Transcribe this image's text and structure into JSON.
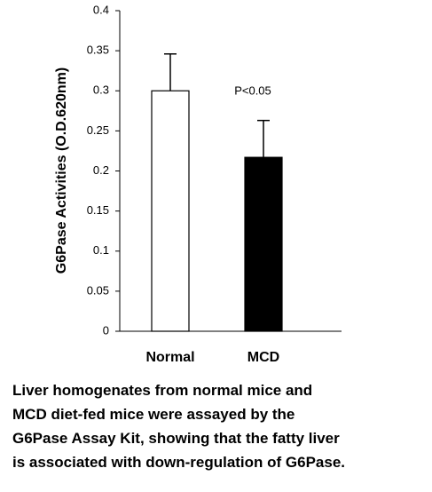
{
  "chart_data": {
    "type": "bar",
    "ylabel": "G6Pase Activities (O.D.620nm)",
    "categories": [
      "Normal",
      "MCD"
    ],
    "values": [
      0.3,
      0.217
    ],
    "errors": [
      0.046,
      0.046
    ],
    "colors": [
      "#ffffff",
      "#000000"
    ],
    "ylim": [
      0,
      0.4
    ],
    "yticks": [
      0,
      0.05,
      0.1,
      0.15,
      0.2,
      0.25,
      0.3,
      0.35,
      0.4
    ],
    "annotation": "P<0.05",
    "caption": [
      "Liver homogenates from normal mice and",
      "MCD diet-fed mice were assayed by the",
      "G6Pase Assay Kit, showing that the fatty liver",
      "is associated with down-regulation of G6Pase."
    ]
  }
}
